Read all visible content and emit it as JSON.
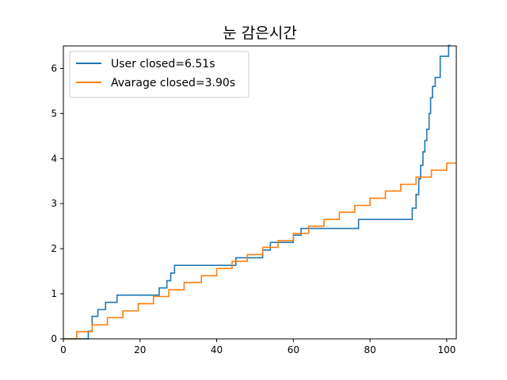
{
  "chart_data": {
    "type": "line",
    "title": "눈 감은시간",
    "xlabel": "",
    "ylabel": "",
    "xlim": [
      0,
      102.5
    ],
    "ylim": [
      0,
      6.5
    ],
    "xticks": [
      0,
      20,
      40,
      60,
      80,
      100
    ],
    "yticks": [
      0,
      1,
      2,
      3,
      4,
      5,
      6
    ],
    "grid": false,
    "legend_position": "upper-left",
    "step": "post",
    "series": [
      {
        "name": "User closed=6.51s",
        "color": "#1f77b4",
        "points": [
          [
            0,
            0
          ],
          [
            6.5,
            0
          ],
          [
            6.5,
            0.17
          ],
          [
            7.5,
            0.17
          ],
          [
            7.5,
            0.5
          ],
          [
            9,
            0.5
          ],
          [
            9,
            0.65
          ],
          [
            11,
            0.65
          ],
          [
            11,
            0.81
          ],
          [
            14,
            0.81
          ],
          [
            14,
            0.97
          ],
          [
            25,
            0.97
          ],
          [
            25,
            1.13
          ],
          [
            27,
            1.13
          ],
          [
            27,
            1.29
          ],
          [
            28,
            1.29
          ],
          [
            28,
            1.46
          ],
          [
            29,
            1.46
          ],
          [
            29,
            1.63
          ],
          [
            45,
            1.63
          ],
          [
            45,
            1.8
          ],
          [
            47,
            1.8
          ],
          [
            47,
            1.8
          ],
          [
            52,
            1.8
          ],
          [
            52,
            1.97
          ],
          [
            54,
            1.97
          ],
          [
            54,
            2.14
          ],
          [
            60,
            2.14
          ],
          [
            60,
            2.3
          ],
          [
            62,
            2.3
          ],
          [
            62,
            2.45
          ],
          [
            77,
            2.45
          ],
          [
            77,
            2.65
          ],
          [
            91,
            2.65
          ],
          [
            91,
            2.9
          ],
          [
            92,
            2.9
          ],
          [
            92,
            3.2
          ],
          [
            92.7,
            3.2
          ],
          [
            92.7,
            3.55
          ],
          [
            93.2,
            3.55
          ],
          [
            93.2,
            3.85
          ],
          [
            93.8,
            3.85
          ],
          [
            93.8,
            4.15
          ],
          [
            94.3,
            4.15
          ],
          [
            94.3,
            4.4
          ],
          [
            94.8,
            4.4
          ],
          [
            94.8,
            4.65
          ],
          [
            95.4,
            4.65
          ],
          [
            95.4,
            5.0
          ],
          [
            95.8,
            5.0
          ],
          [
            95.8,
            5.35
          ],
          [
            96.3,
            5.35
          ],
          [
            96.3,
            5.6
          ],
          [
            97,
            5.6
          ],
          [
            97,
            5.8
          ],
          [
            98.3,
            5.8
          ],
          [
            98.3,
            6.27
          ],
          [
            100.5,
            6.27
          ],
          [
            100.5,
            6.51
          ],
          [
            101,
            6.51
          ]
        ]
      },
      {
        "name": "Avarage closed=3.90s",
        "color": "#ff7f0e",
        "points": [
          [
            0,
            0
          ],
          [
            3.5,
            0
          ],
          [
            3.5,
            0.16
          ],
          [
            6,
            0.16
          ],
          [
            6,
            0.16
          ],
          [
            7.5,
            0.16
          ],
          [
            7.5,
            0.31
          ],
          [
            11.5,
            0.31
          ],
          [
            11.5,
            0.47
          ],
          [
            15.5,
            0.47
          ],
          [
            15.5,
            0.62
          ],
          [
            19.5,
            0.62
          ],
          [
            19.5,
            0.78
          ],
          [
            23.5,
            0.78
          ],
          [
            23.5,
            0.94
          ],
          [
            27.5,
            0.94
          ],
          [
            27.5,
            1.09
          ],
          [
            31.5,
            1.09
          ],
          [
            31.5,
            1.25
          ],
          [
            36,
            1.25
          ],
          [
            36,
            1.4
          ],
          [
            40,
            1.4
          ],
          [
            40,
            1.56
          ],
          [
            44,
            1.56
          ],
          [
            44,
            1.72
          ],
          [
            48,
            1.72
          ],
          [
            48,
            1.87
          ],
          [
            52,
            1.87
          ],
          [
            52,
            2.03
          ],
          [
            56,
            2.03
          ],
          [
            56,
            2.18
          ],
          [
            60,
            2.18
          ],
          [
            60,
            2.34
          ],
          [
            64,
            2.34
          ],
          [
            64,
            2.5
          ],
          [
            68,
            2.5
          ],
          [
            68,
            2.65
          ],
          [
            72,
            2.65
          ],
          [
            72,
            2.81
          ],
          [
            76,
            2.81
          ],
          [
            76,
            2.96
          ],
          [
            80,
            2.96
          ],
          [
            80,
            3.12
          ],
          [
            84,
            3.12
          ],
          [
            84,
            3.28
          ],
          [
            88,
            3.28
          ],
          [
            88,
            3.43
          ],
          [
            92,
            3.43
          ],
          [
            92,
            3.59
          ],
          [
            96,
            3.59
          ],
          [
            96,
            3.74
          ],
          [
            100,
            3.74
          ],
          [
            100,
            3.9
          ],
          [
            102.5,
            3.9
          ]
        ]
      }
    ]
  }
}
